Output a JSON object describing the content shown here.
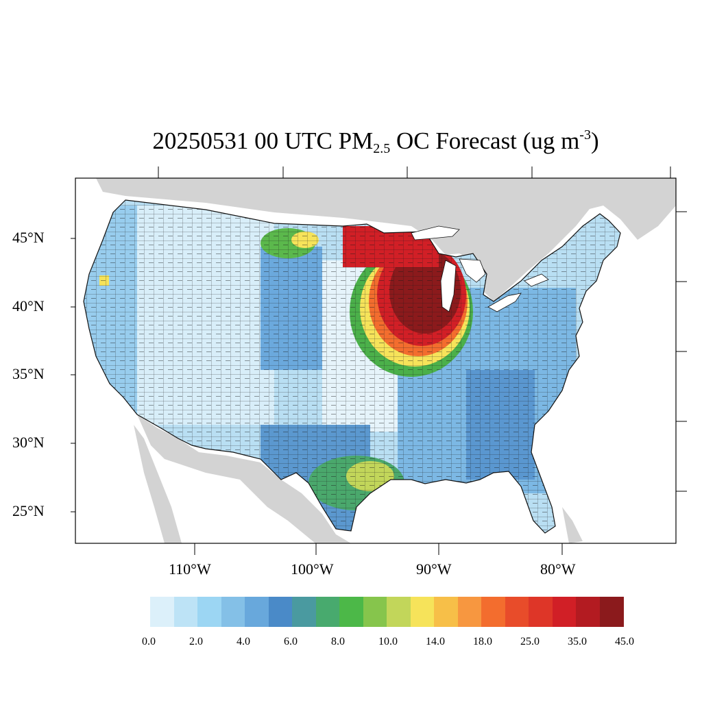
{
  "title": {
    "prefix": "20250531 00 UTC PM",
    "subscript": "2.5",
    "middle": " OC Forecast (ug m",
    "superscript": "-3",
    "suffix": ")"
  },
  "map": {
    "land_color": "#d3d3d3",
    "ocean_color": "#ffffff",
    "lat_labels": [
      "45°N",
      "40°N",
      "35°N",
      "30°N",
      "25°N"
    ],
    "lon_labels": [
      "110°W",
      "100°W",
      "90°W",
      "80°W"
    ]
  },
  "colorbar": {
    "colors": [
      "#dcf0fa",
      "#bde3f6",
      "#9cd6f3",
      "#84c0e7",
      "#68a8dc",
      "#4a8ac8",
      "#4a9aa0",
      "#48aa6e",
      "#4cb848",
      "#86c54c",
      "#c2d65a",
      "#f6e35a",
      "#f7bf48",
      "#f79740",
      "#f36d2e",
      "#e84c2a",
      "#de3628",
      "#d11f26",
      "#b31b21",
      "#8b1a1c"
    ],
    "labels": [
      "0.0",
      "2.0",
      "4.0",
      "6.0",
      "8.0",
      "10.0",
      "14.0",
      "18.0",
      "25.0",
      "35.0",
      "45.0"
    ]
  }
}
